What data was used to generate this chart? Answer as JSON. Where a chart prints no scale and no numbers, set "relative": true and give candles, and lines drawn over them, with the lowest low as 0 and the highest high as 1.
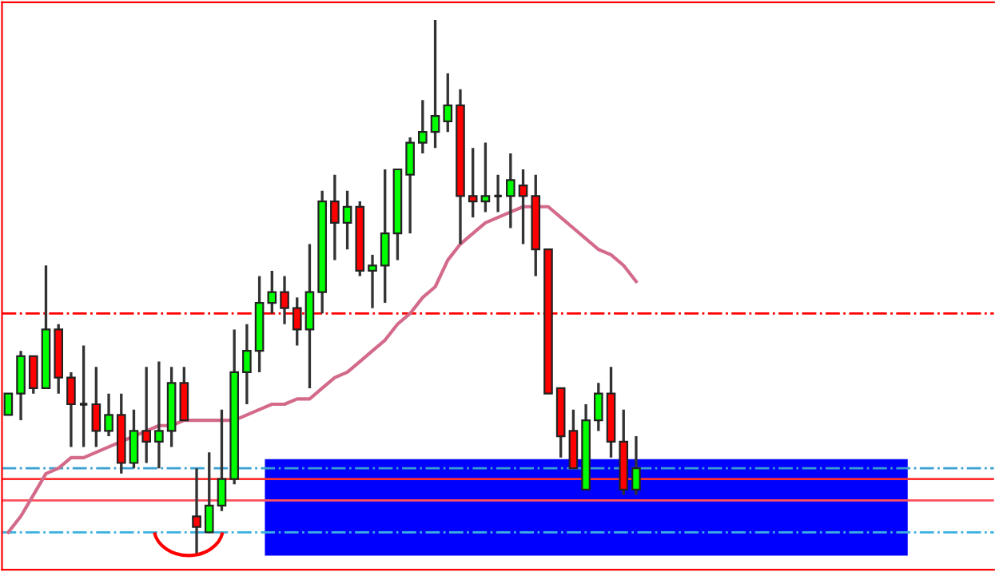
{
  "chart_data": {
    "type": "candlestick",
    "relative": true,
    "categories": [
      null,
      null,
      null,
      null,
      null,
      null,
      null,
      null,
      null,
      null,
      null,
      null,
      null,
      null,
      null,
      null,
      null,
      null,
      null,
      null,
      null,
      null,
      null,
      null,
      null,
      null,
      null,
      null,
      null,
      null,
      null,
      null,
      null,
      null,
      null,
      null,
      null,
      null,
      null,
      null,
      null,
      null,
      null,
      null,
      null,
      null,
      null,
      null,
      null,
      null,
      null,
      null,
      null,
      null,
      null,
      null,
      null,
      null,
      null,
      null,
      null,
      null,
      null,
      null,
      null,
      null,
      null,
      null,
      null,
      null,
      null,
      null,
      null,
      null,
      null,
      null,
      null,
      null,
      null
    ],
    "ohlc": [
      [
        0.26,
        0.3,
        0.26,
        0.3
      ],
      [
        0.3,
        0.38,
        0.25,
        0.37
      ],
      [
        0.37,
        0.37,
        0.3,
        0.31
      ],
      [
        0.31,
        0.54,
        0.31,
        0.42
      ],
      [
        0.42,
        0.43,
        0.3,
        0.33
      ],
      [
        0.33,
        0.34,
        0.2,
        0.28
      ],
      [
        0.28,
        0.39,
        0.2,
        0.28
      ],
      [
        0.28,
        0.35,
        0.2,
        0.23
      ],
      [
        0.23,
        0.3,
        0.22,
        0.26
      ],
      [
        0.26,
        0.3,
        0.15,
        0.17
      ],
      [
        0.17,
        0.27,
        0.16,
        0.23
      ],
      [
        0.23,
        0.35,
        0.17,
        0.21
      ],
      [
        0.21,
        0.36,
        0.16,
        0.23
      ],
      [
        0.23,
        0.35,
        0.2,
        0.32
      ],
      [
        0.32,
        0.35,
        0.25,
        0.25
      ],
      [
        0.07,
        0.16,
        0.0,
        0.05
      ],
      [
        0.04,
        0.19,
        0.04,
        0.09
      ],
      [
        0.09,
        0.27,
        0.08,
        0.14
      ],
      [
        0.14,
        0.42,
        0.13,
        0.34
      ],
      [
        0.34,
        0.43,
        0.28,
        0.38
      ],
      [
        0.38,
        0.52,
        0.34,
        0.47
      ],
      [
        0.47,
        0.53,
        0.45,
        0.49
      ],
      [
        0.49,
        0.52,
        0.43,
        0.46
      ],
      [
        0.46,
        0.48,
        0.39,
        0.42
      ],
      [
        0.42,
        0.58,
        0.31,
        0.49
      ],
      [
        0.49,
        0.68,
        0.45,
        0.66
      ],
      [
        0.66,
        0.71,
        0.55,
        0.62
      ],
      [
        0.62,
        0.68,
        0.57,
        0.65
      ],
      [
        0.65,
        0.66,
        0.52,
        0.53
      ],
      [
        0.53,
        0.56,
        0.46,
        0.54
      ],
      [
        0.54,
        0.72,
        0.47,
        0.6
      ],
      [
        0.6,
        0.72,
        0.55,
        0.72
      ],
      [
        0.71,
        0.78,
        0.6,
        0.77
      ],
      [
        0.77,
        0.85,
        0.75,
        0.79
      ],
      [
        0.79,
        1.0,
        0.76,
        0.82
      ],
      [
        0.81,
        0.9,
        0.79,
        0.84
      ],
      [
        0.84,
        0.87,
        0.58,
        0.67
      ],
      [
        0.67,
        0.76,
        0.63,
        0.66
      ],
      [
        0.66,
        0.77,
        0.64,
        0.67
      ],
      [
        0.67,
        0.71,
        0.64,
        0.67
      ],
      [
        0.67,
        0.75,
        0.61,
        0.7
      ],
      [
        0.69,
        0.72,
        0.58,
        0.67
      ],
      [
        0.67,
        0.71,
        0.52,
        0.57
      ],
      [
        0.57,
        0.57,
        0.3,
        0.3
      ],
      [
        0.31,
        0.31,
        0.18,
        0.22
      ],
      [
        0.23,
        0.27,
        0.16,
        0.16
      ],
      [
        0.12,
        0.28,
        0.12,
        0.25
      ],
      [
        0.25,
        0.32,
        0.23,
        0.3
      ],
      [
        0.3,
        0.35,
        0.18,
        0.21
      ],
      [
        0.21,
        0.27,
        0.11,
        0.12
      ],
      [
        0.12,
        0.22,
        0.11,
        0.16
      ],
      null,
      null,
      null,
      null,
      null,
      null,
      null,
      null,
      null,
      null,
      null,
      null,
      null,
      null,
      null,
      null,
      null,
      null,
      null,
      null,
      null,
      null,
      null,
      null,
      null,
      null,
      null,
      null
    ],
    "colors": [
      "#00ff00",
      "#00ff00",
      "#ff0000",
      "#00ff00",
      "#ff0000",
      "#ff0000",
      "#222222",
      "#ff0000",
      "#00ff00",
      "#ff0000",
      "#00ff00",
      "#ff0000",
      "#00ff00",
      "#00ff00",
      "#ff0000",
      "#ff0000",
      "#00ff00",
      "#00ff00",
      "#00ff00",
      "#00ff00",
      "#00ff00",
      "#00ff00",
      "#ff0000",
      "#ff0000",
      "#00ff00",
      "#00ff00",
      "#ff0000",
      "#00ff00",
      "#ff0000",
      "#00ff00",
      "#00ff00",
      "#00ff00",
      "#00ff00",
      "#00ff00",
      "#00ff00",
      "#00ff00",
      "#ff0000",
      "#ff0000",
      "#00ff00",
      "#222222",
      "#00ff00",
      "#ff0000",
      "#ff0000",
      "#ff0000",
      "#ff0000",
      "#ff0000",
      "#00ff00",
      "#00ff00",
      "#ff0000",
      "#ff0000",
      "#00ff00",
      null,
      null,
      null,
      null,
      null,
      null,
      null,
      null,
      null,
      null,
      null,
      null,
      null,
      null,
      null,
      null,
      null,
      null,
      null,
      null,
      null,
      null,
      null,
      null,
      null,
      null,
      null,
      null
    ],
    "series": [
      {
        "type": "line",
        "color": "#d46a8a",
        "values": [
          0.04,
          0.07,
          0.11,
          0.15,
          0.16,
          0.18,
          0.18,
          0.19,
          0.2,
          0.21,
          0.22,
          0.23,
          0.24,
          0.24,
          0.25,
          0.25,
          0.25,
          0.25,
          0.25,
          0.26,
          0.27,
          0.28,
          0.28,
          0.29,
          0.29,
          0.31,
          0.33,
          0.34,
          0.36,
          0.38,
          0.4,
          0.43,
          0.45,
          0.48,
          0.5,
          0.55,
          0.58,
          0.6,
          0.62,
          0.63,
          0.64,
          0.65,
          0.65,
          0.65,
          0.63,
          0.61,
          0.59,
          0.57,
          0.56,
          0.54,
          0.51,
          null,
          null,
          null,
          null,
          null,
          null,
          null,
          null,
          null,
          null,
          null,
          null,
          null,
          null,
          null,
          null,
          null,
          null,
          null,
          null,
          null,
          null,
          null,
          null,
          null,
          null,
          null,
          null
        ]
      }
    ],
    "ref_lines": [
      {
        "axis": "y",
        "value": 0.45,
        "color": "#ff0000",
        "line_style": "dashdot"
      },
      {
        "axis": "y",
        "value": 0.16,
        "color": "#3aa0d0",
        "line_style": "dashdot"
      },
      {
        "axis": "y",
        "value": 0.14,
        "color": "#ff3030",
        "line_style": "solid"
      },
      {
        "axis": "y",
        "value": 0.1,
        "color": "#ff5060",
        "line_style": "solid"
      },
      {
        "axis": "y",
        "value": 0.04,
        "color": "#3ab0e0",
        "line_style": "dashdot"
      }
    ]
  }
}
